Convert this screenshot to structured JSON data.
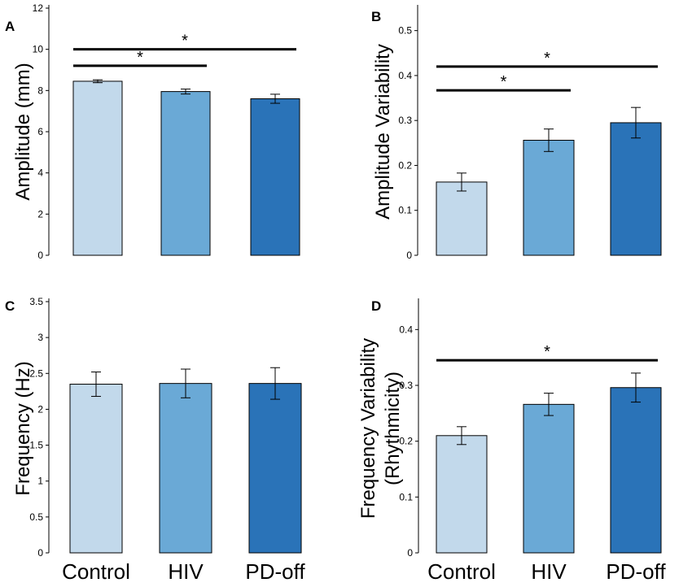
{
  "chart_data": [
    {
      "panel": "A",
      "type": "bar",
      "ylabel": "Amplitude (mm)",
      "categories": [
        "Control",
        "HIV",
        "PD-off"
      ],
      "values": [
        8.45,
        7.95,
        7.6
      ],
      "errors": [
        0.07,
        0.12,
        0.22
      ],
      "colors": [
        "#c2d9eb",
        "#6aa9d6",
        "#2a73b8"
      ],
      "ylim": [
        0,
        12
      ],
      "yticks": [
        "0",
        "2",
        "4",
        "6",
        "8",
        "10",
        "12"
      ],
      "yticks_values": [
        0,
        2,
        4,
        6,
        8,
        10,
        12
      ],
      "show_category_labels": false,
      "significance": [
        {
          "from": 1,
          "to": 2,
          "y": 9.2,
          "label": "*"
        },
        {
          "from": 1,
          "to": 3,
          "y": 10.0,
          "label": "*"
        }
      ]
    },
    {
      "panel": "B",
      "type": "bar",
      "ylabel": "Amplitude Variability",
      "categories": [
        "Control",
        "HIV",
        "PD-off"
      ],
      "values": [
        0.163,
        0.256,
        0.295
      ],
      "errors": [
        0.02,
        0.025,
        0.034
      ],
      "colors": [
        "#c2d9eb",
        "#6aa9d6",
        "#2a73b8"
      ],
      "ylim": [
        0,
        0.55
      ],
      "yticks": [
        "0",
        "0.1",
        "0.2",
        "0.3",
        "0.4",
        "0.5"
      ],
      "yticks_values": [
        0,
        0.1,
        0.2,
        0.3,
        0.4,
        0.5
      ],
      "show_category_labels": false,
      "significance": [
        {
          "from": 1,
          "to": 2,
          "y": 0.367,
          "label": "*"
        },
        {
          "from": 1,
          "to": 3,
          "y": 0.42,
          "label": "*"
        }
      ]
    },
    {
      "panel": "C",
      "type": "bar",
      "ylabel": "Frequency (Hz)",
      "categories": [
        "Control",
        "HIV",
        "PD-off"
      ],
      "values": [
        2.35,
        2.36,
        2.36
      ],
      "errors": [
        0.17,
        0.2,
        0.22
      ],
      "colors": [
        "#c2d9eb",
        "#6aa9d6",
        "#2a73b8"
      ],
      "ylim": [
        0,
        3.5
      ],
      "yticks": [
        "0",
        "0.5",
        "1",
        "1.5",
        "2",
        "2.5",
        "3",
        "3.5"
      ],
      "yticks_values": [
        0,
        0.5,
        1,
        1.5,
        2,
        2.5,
        3,
        3.5
      ],
      "show_category_labels": true,
      "significance": []
    },
    {
      "panel": "D",
      "type": "bar",
      "ylabel": "Frequency Variability",
      "ylabel2": "(Rhythmicity)",
      "categories": [
        "Control",
        "HIV",
        "PD-off"
      ],
      "values": [
        0.21,
        0.266,
        0.296
      ],
      "errors": [
        0.016,
        0.02,
        0.026
      ],
      "colors": [
        "#c2d9eb",
        "#6aa9d6",
        "#2a73b8"
      ],
      "ylim": [
        0,
        0.45
      ],
      "yticks": [
        "0",
        "0.1",
        "0.2",
        "0.3",
        "0.4"
      ],
      "yticks_values": [
        0,
        0.1,
        0.2,
        0.3,
        0.4
      ],
      "show_category_labels": true,
      "significance": [
        {
          "from": 1,
          "to": 3,
          "y": 0.345,
          "label": "*"
        }
      ]
    }
  ]
}
